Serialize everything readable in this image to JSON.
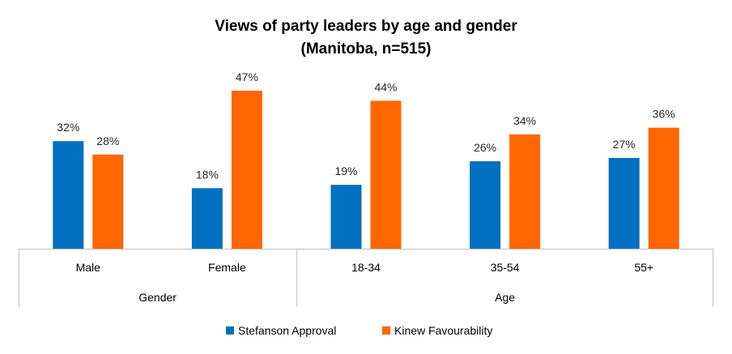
{
  "chart_data": {
    "type": "bar",
    "title": "Views of party leaders by age and gender",
    "subtitle": "(Manitoba, n=515)",
    "categories": [
      "Male",
      "Female",
      "18-34",
      "35-54",
      "55+"
    ],
    "groups": [
      {
        "label": "Gender",
        "categories": [
          "Male",
          "Female"
        ]
      },
      {
        "label": "Age",
        "categories": [
          "18-34",
          "35-54",
          "55+"
        ]
      }
    ],
    "series": [
      {
        "name": "Stefanson Approval",
        "color": "#0070C0",
        "values": [
          32,
          18,
          19,
          26,
          27
        ],
        "labels": [
          "32%",
          "18%",
          "19%",
          "26%",
          "27%"
        ]
      },
      {
        "name": "Kinew Favourability",
        "color": "#FF6600",
        "values": [
          28,
          47,
          44,
          34,
          36
        ],
        "labels": [
          "28%",
          "47%",
          "44%",
          "34%",
          "36%"
        ]
      }
    ],
    "ylim": [
      0,
      47
    ],
    "grid": false,
    "legend_position": "bottom"
  }
}
